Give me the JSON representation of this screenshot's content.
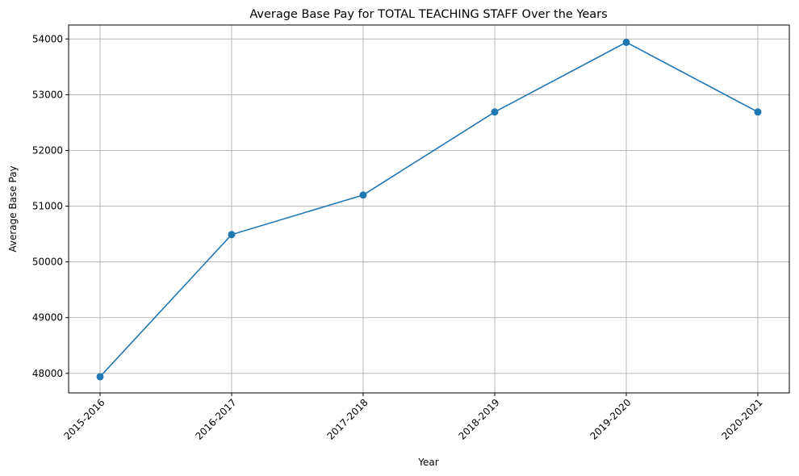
{
  "chart_data": {
    "type": "line",
    "title": "Average Base Pay for TOTAL TEACHING STAFF Over the Years",
    "xlabel": "Year",
    "ylabel": "Average Base Pay",
    "categories": [
      "2015-2016",
      "2016-2017",
      "2017-2018",
      "2018-2019",
      "2019-2020",
      "2020-2021"
    ],
    "series": [
      {
        "values": [
          47940,
          50490,
          51200,
          52690,
          53940,
          52690
        ],
        "color": "#1f77b4",
        "marker": "circle"
      }
    ],
    "ylim": [
      47650,
      54250
    ],
    "yticks": [
      48000,
      49000,
      50000,
      51000,
      52000,
      53000,
      54000
    ],
    "grid": true,
    "legend": "none"
  }
}
